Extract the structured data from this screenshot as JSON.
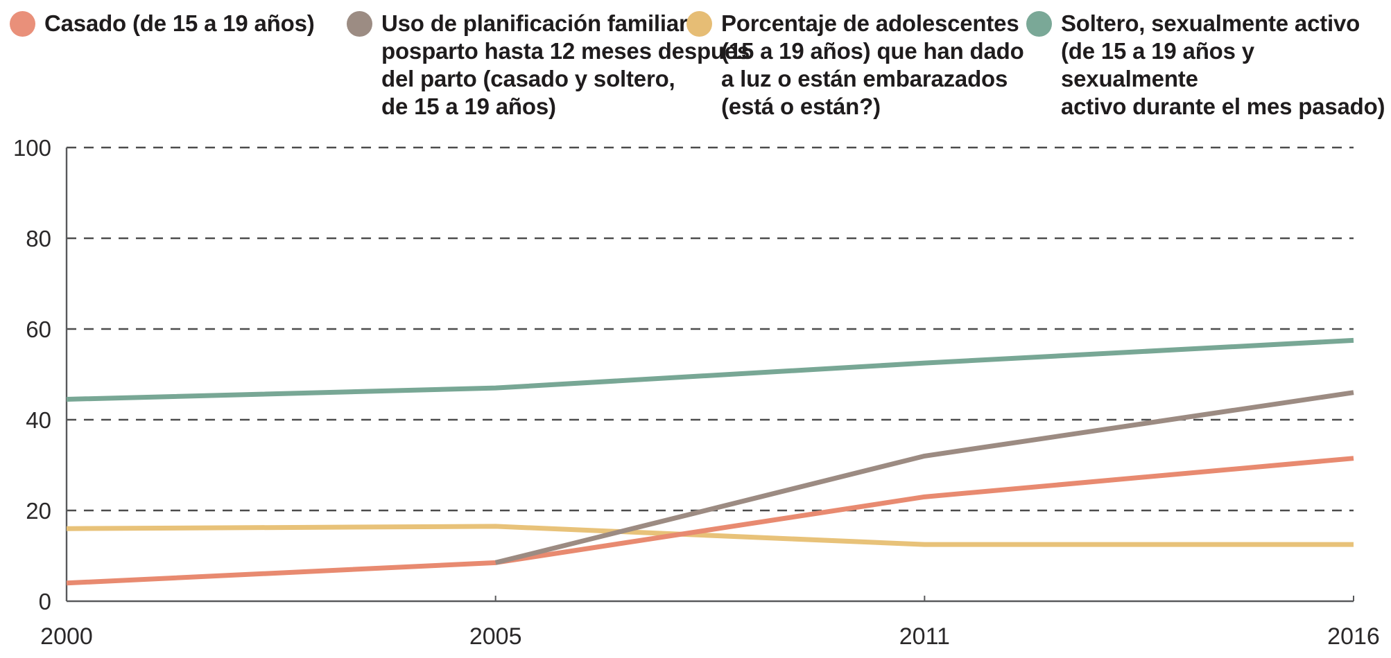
{
  "legend": {
    "items": [
      {
        "label": "Casado (de 15 a 19 años)",
        "color": "#e9907a"
      },
      {
        "label": "Uso de planificación familiar\nposparto hasta 12 meses despues\ndel parto (casado y soltero,\nde 15 a 19 años)",
        "color": "#9c8c83"
      },
      {
        "label": "Porcentaje de adolescentes\n(15 a 19 años) que han dado\na luz o están embarazados\n(está o están?)",
        "color": "#e6bd75"
      },
      {
        "label": "Soltero, sexualmente activo\n(de 15 a 19 años y sexualmente\nactivo durante el mes pasado)",
        "color": "#7aa897"
      }
    ]
  },
  "chart_data": {
    "type": "line",
    "x": [
      2000,
      2005,
      2011,
      2016
    ],
    "x_tick_labels": [
      "2000",
      "2005",
      "2011",
      "2016"
    ],
    "x_spacing": "equal-categories",
    "y_ticks": [
      0,
      20,
      40,
      60,
      80,
      100
    ],
    "y_tick_labels": [
      "0",
      "20",
      "40",
      "60",
      "80",
      "100"
    ],
    "ylim": [
      0,
      100
    ],
    "grid": "horizontal-dashed",
    "legend_position": "top",
    "title": "",
    "xlabel": "",
    "ylabel": "",
    "series": [
      {
        "name": "Porcentaje de adolescentes (15 a 19 años) que han dado a luz o están embarazados (está o están?)",
        "color": "#e8c279",
        "values": [
          16,
          16.5,
          12.5,
          12.5
        ]
      },
      {
        "name": "Casado (de 15 a 19 años)",
        "color": "#e88a70",
        "values": [
          4,
          8.5,
          23,
          31.5
        ]
      },
      {
        "name": "Uso de planificación familiar posparto hasta 12 meses despues del parto (casado y soltero, de 15 a 19 años)",
        "color": "#9c8b82",
        "values": [
          null,
          8.5,
          32,
          46
        ]
      },
      {
        "name": "Soltero, sexualmente activo (de 15 a 19 años y sexualmente activo durante el mes pasado)",
        "color": "#78a795",
        "values": [
          44.5,
          47,
          52.5,
          57.5
        ]
      }
    ],
    "axis_color": "#58595b",
    "gridline_color": "#4c4c4c",
    "tick_label_color": "#2a2829"
  }
}
